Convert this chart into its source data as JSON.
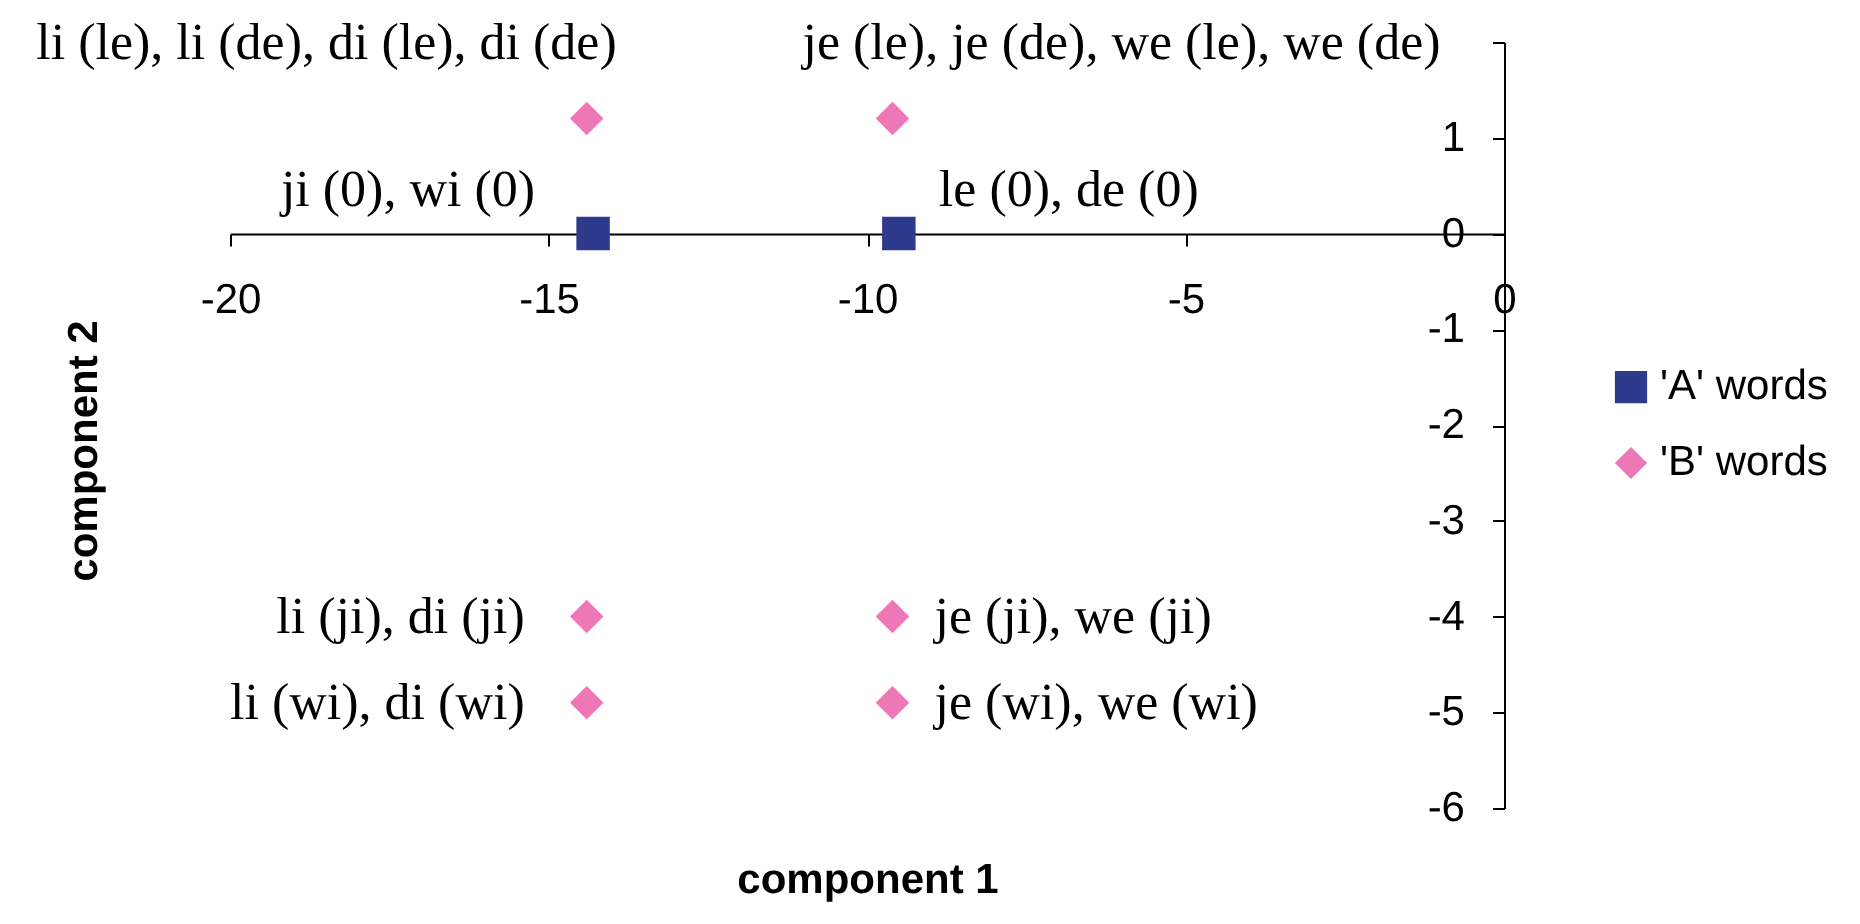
{
  "chart_data": {
    "type": "scatter",
    "xlabel": "component 1",
    "ylabel": "component 2",
    "xlim": [
      -20,
      0
    ],
    "xticks": [
      -20,
      -15,
      -10,
      -5,
      0
    ],
    "ylim": [
      -6,
      2
    ],
    "yticks": [
      -6,
      -5,
      -4,
      -3,
      -2,
      -1,
      0,
      1,
      {
        "value": 2,
        "label": null
      }
    ],
    "grid": false,
    "legend": "right",
    "series": [
      {
        "name": "'A' words",
        "color": "#2e3a8c",
        "marker": "square",
        "x": [
          -14.3,
          -9.5
        ],
        "values": [
          0,
          0
        ],
        "value_labels": [
          "ji (0), wi (0)",
          "le (0), de (0)"
        ]
      },
      {
        "name": "'B' words",
        "color": "#ee77b5",
        "marker": "diamond",
        "x": [
          -14.4,
          -14.4,
          -14.4,
          -9.6,
          -9.6,
          -9.6
        ],
        "values": [
          1.2,
          -4.0,
          -4.9,
          1.2,
          -4.0,
          -4.9
        ],
        "value_labels": [
          "li (le), li (de), di (le), di (de)",
          "li (ji), di (ji)",
          "li (wi), di (wi)",
          "je (le), je (de), we (le), we (de)",
          "je (ji), we (ji)",
          "je (wi), we (wi)"
        ]
      }
    ]
  }
}
